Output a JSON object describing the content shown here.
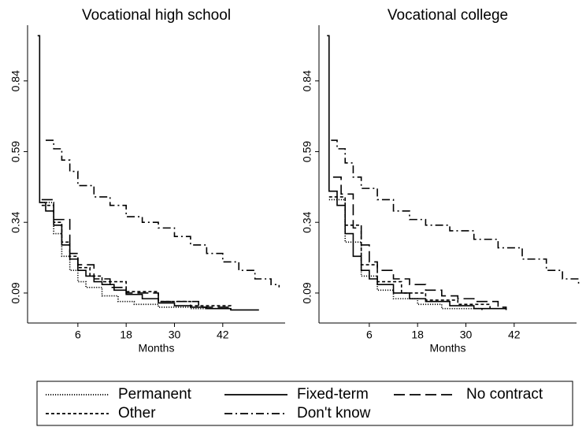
{
  "chart_data": [
    {
      "type": "line",
      "title": "Vocational high school",
      "xlabel": "Months",
      "step": "post",
      "xlim": [
        -6.5,
        57.5
      ],
      "xticks": [
        6,
        18,
        30,
        42
      ],
      "ylim": [
        -0.016,
        1.037
      ],
      "yticks": [
        0.09,
        0.34,
        0.59,
        0.84
      ],
      "series": [
        {
          "name": "Permanent",
          "style": "dotted",
          "color": "#000000",
          "x": [
            -3,
            0,
            2,
            4,
            6,
            8,
            12,
            16,
            20,
            26,
            34,
            44
          ],
          "values": [
            0.41,
            0.3,
            0.22,
            0.17,
            0.13,
            0.11,
            0.08,
            0.06,
            0.05,
            0.04,
            0.035,
            0.03
          ]
        },
        {
          "name": "Fixed-term",
          "style": "solid",
          "color": "#000000",
          "x": [
            -4,
            -3.5,
            -2,
            0,
            2,
            4,
            6,
            8,
            10,
            12,
            15,
            18,
            22,
            26,
            30,
            34,
            38,
            44,
            51
          ],
          "values": [
            1.0,
            0.41,
            0.38,
            0.33,
            0.26,
            0.21,
            0.17,
            0.15,
            0.13,
            0.12,
            0.1,
            0.085,
            0.07,
            0.055,
            0.045,
            0.04,
            0.035,
            0.03,
            0.03
          ]
        },
        {
          "name": "No contract",
          "style": "longdash",
          "color": "#000000",
          "x": [
            -3,
            0,
            4,
            6,
            10,
            14,
            18,
            26,
            36,
            44
          ],
          "values": [
            0.42,
            0.35,
            0.23,
            0.19,
            0.14,
            0.11,
            0.09,
            0.06,
            0.04,
            0.03
          ]
        },
        {
          "name": "Other",
          "style": "shortdash",
          "color": "#000000",
          "x": [
            -3,
            0,
            2,
            4,
            6,
            9,
            12,
            18,
            26,
            34,
            44
          ],
          "values": [
            0.4,
            0.34,
            0.27,
            0.22,
            0.18,
            0.15,
            0.13,
            0.095,
            0.06,
            0.045,
            0.03
          ]
        },
        {
          "name": "Don't know",
          "style": "dashdot",
          "color": "#000000",
          "x": [
            -2,
            0,
            2,
            4,
            6,
            10,
            14,
            18,
            22,
            26,
            30,
            34,
            38,
            42,
            46,
            50,
            54,
            56
          ],
          "values": [
            0.63,
            0.6,
            0.56,
            0.52,
            0.47,
            0.43,
            0.4,
            0.36,
            0.34,
            0.32,
            0.29,
            0.26,
            0.23,
            0.2,
            0.17,
            0.14,
            0.12,
            0.11
          ]
        }
      ]
    },
    {
      "type": "line",
      "title": "Vocational college",
      "xlabel": "Months",
      "step": "post",
      "xlim": [
        -6.5,
        57.5
      ],
      "xticks": [
        6,
        18,
        30,
        42
      ],
      "ylim": [
        -0.016,
        1.037
      ],
      "yticks": [
        0.09,
        0.34,
        0.59,
        0.84
      ],
      "series": [
        {
          "style": "dotted",
          "color": "#000000",
          "x": [
            -4,
            0,
            4,
            8,
            12,
            18,
            24,
            34
          ],
          "values": [
            0.42,
            0.27,
            0.15,
            0.1,
            0.07,
            0.05,
            0.035,
            0.03
          ]
        },
        {
          "style": "solid",
          "color": "#000000",
          "x": [
            -4.5,
            -4,
            -2,
            0,
            2,
            4,
            6,
            8,
            12,
            16,
            20,
            26,
            32,
            40
          ],
          "values": [
            1.0,
            0.45,
            0.4,
            0.3,
            0.22,
            0.17,
            0.14,
            0.12,
            0.09,
            0.07,
            0.06,
            0.045,
            0.035,
            0.03
          ]
        },
        {
          "style": "longdash",
          "color": "#000000",
          "x": [
            -3,
            -1,
            2,
            4,
            6,
            8,
            12,
            16,
            20,
            24,
            28,
            32,
            38,
            40
          ],
          "values": [
            0.5,
            0.44,
            0.32,
            0.26,
            0.2,
            0.17,
            0.14,
            0.12,
            0.1,
            0.08,
            0.07,
            0.06,
            0.04,
            0.03
          ]
        },
        {
          "style": "shortdash",
          "color": "#000000",
          "x": [
            -4,
            0,
            4,
            8,
            14,
            20,
            28,
            36
          ],
          "values": [
            0.43,
            0.33,
            0.19,
            0.13,
            0.09,
            0.065,
            0.05,
            0.035
          ]
        },
        {
          "style": "dashdot",
          "color": "#000000",
          "x": [
            -3.5,
            -2,
            0,
            2,
            4,
            8,
            12,
            16,
            20,
            26,
            32,
            38,
            44,
            50,
            54,
            58
          ],
          "values": [
            0.63,
            0.6,
            0.55,
            0.5,
            0.46,
            0.42,
            0.38,
            0.35,
            0.33,
            0.31,
            0.28,
            0.25,
            0.21,
            0.17,
            0.14,
            0.12
          ]
        }
      ]
    }
  ]
}
